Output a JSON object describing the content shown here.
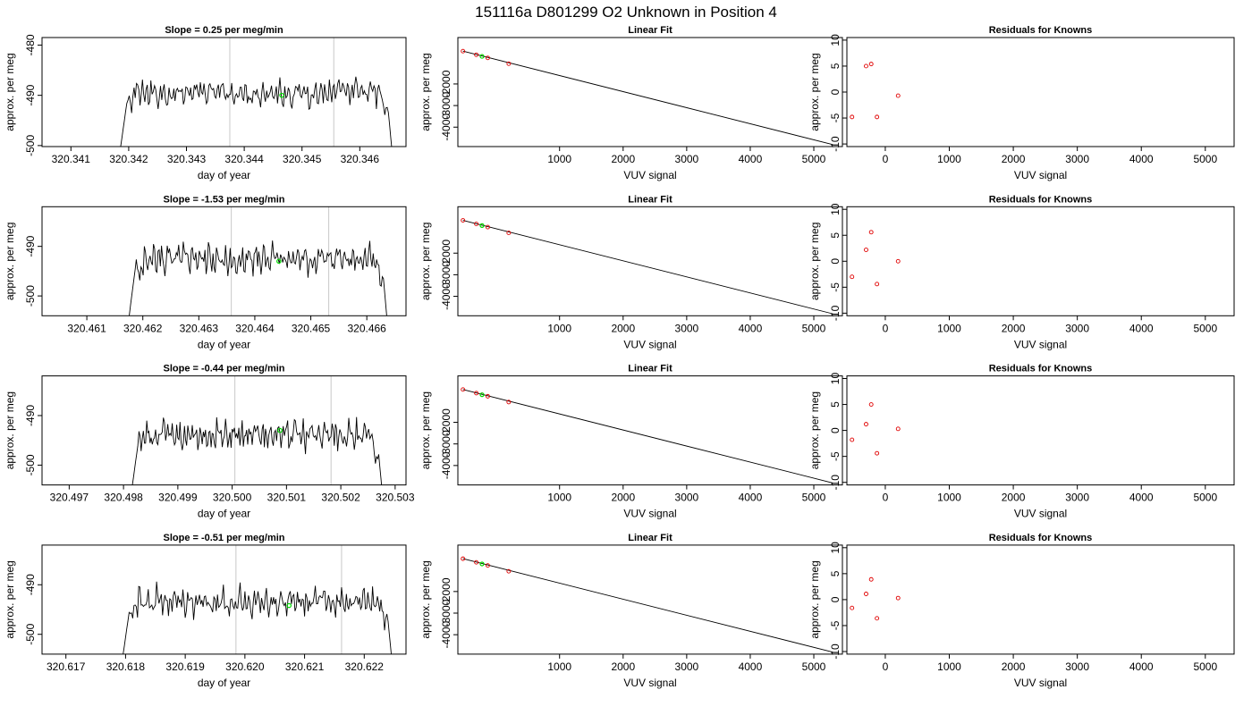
{
  "figure": {
    "title": "151116a      D801299   O2 Unknown in Position  4"
  },
  "chart_data": [
    {
      "type": "line",
      "row": 1,
      "title": "Slope =  0.25  per meg/min",
      "xlabel": "day of year",
      "ylabel": "approx. per meg",
      "xlim": [
        320.3405,
        320.3468
      ],
      "ylim": [
        -500.2,
        -478.5
      ],
      "x_ticks": [
        "320.341",
        "320.342",
        "320.343",
        "320.344",
        "320.345",
        "320.346"
      ],
      "x_tick_values": [
        320.341,
        320.342,
        320.343,
        320.344,
        320.345,
        320.346
      ],
      "y_ticks": [
        "-500",
        "-490",
        "-480"
      ],
      "y_tick_values": [
        -500,
        -490,
        -480
      ],
      "series_x_range": [
        320.3418,
        320.3466
      ],
      "baseline": -489.5,
      "noise_amplitude": 2.2,
      "vlines": [
        320.34375,
        320.34555
      ],
      "green_point": [
        320.34465,
        -490.0
      ],
      "color_line": "#000000",
      "color_vlines": "#c8c8c8",
      "color_point": "#00dd00"
    },
    {
      "type": "scatter",
      "row": 1,
      "title": "Linear Fit",
      "xlabel": "VUV signal",
      "ylabel": "approx. per meg",
      "xlim": [
        -600,
        5450
      ],
      "ylim": [
        -4900,
        150
      ],
      "x_ticks": [
        "1000",
        "2000",
        "3000",
        "4000",
        "5000"
      ],
      "x_tick_values": [
        1000,
        2000,
        3000,
        4000,
        5000
      ],
      "y_ticks": [
        "-4000",
        "-3000",
        "-2000"
      ],
      "y_tick_values": [
        -4000,
        -3000,
        -2000
      ],
      "points": [
        [
          -520,
          -480
        ],
        [
          -310,
          -648
        ],
        [
          -220,
          -722
        ],
        [
          -130,
          -793
        ],
        [
          200,
          -1062
        ]
      ],
      "green_points": [
        [
          -220,
          -722
        ]
      ],
      "fit_line": [
        [
          -520,
          -480
        ],
        [
          5300,
          -4810
        ]
      ],
      "color_points": "#e00000",
      "color_green": "#00dd00",
      "color_line": "#000000"
    },
    {
      "type": "scatter",
      "row": 1,
      "title": "Residuals for Knowns",
      "xlabel": "VUV signal",
      "ylabel": "approx. per meg",
      "xlim": [
        -600,
        5450
      ],
      "ylim": [
        -10.5,
        10.5
      ],
      "x_ticks": [
        "0",
        "1000",
        "2000",
        "3000",
        "4000",
        "5000"
      ],
      "x_tick_values": [
        0,
        1000,
        2000,
        3000,
        4000,
        5000
      ],
      "y_ticks": [
        "-10",
        "-5",
        "0",
        "5",
        "10"
      ],
      "y_tick_values": [
        -10,
        -5,
        0,
        5,
        10
      ],
      "points": [
        [
          -520,
          -4.8
        ],
        [
          -300,
          5.0
        ],
        [
          -220,
          5.4
        ],
        [
          -130,
          -4.8
        ],
        [
          200,
          -0.7
        ]
      ],
      "color_points": "#e00000"
    },
    {
      "type": "line",
      "row": 2,
      "title": "Slope =  -1.53  per meg/min",
      "xlabel": "day of year",
      "ylabel": "approx. per meg",
      "xlim": [
        320.4602,
        320.4667
      ],
      "ylim": [
        -504.0,
        -482.0
      ],
      "x_ticks": [
        "320.461",
        "320.462",
        "320.463",
        "320.464",
        "320.465",
        "320.466"
      ],
      "x_tick_values": [
        320.461,
        320.462,
        320.463,
        320.464,
        320.465,
        320.466
      ],
      "y_ticks": [
        "-500",
        "-490"
      ],
      "y_tick_values": [
        -500,
        -490
      ],
      "series_x_range": [
        320.4617,
        320.4664
      ],
      "baseline": -492.5,
      "noise_amplitude": 2.3,
      "vlines": [
        320.46358,
        320.46532
      ],
      "green_point": [
        320.46443,
        -493.0
      ],
      "color_line": "#000000",
      "color_vlines": "#c8c8c8",
      "color_point": "#00dd00"
    },
    {
      "type": "scatter",
      "row": 2,
      "title": "Linear Fit",
      "xlabel": "VUV signal",
      "ylabel": "approx. per meg",
      "xlim": [
        -600,
        5450
      ],
      "ylim": [
        -4900,
        150
      ],
      "x_ticks": [
        "1000",
        "2000",
        "3000",
        "4000",
        "5000"
      ],
      "x_tick_values": [
        1000,
        2000,
        3000,
        4000,
        5000
      ],
      "y_ticks": [
        "-4000",
        "-3000",
        "-2000"
      ],
      "y_tick_values": [
        -4000,
        -3000,
        -2000
      ],
      "points": [
        [
          -520,
          -480
        ],
        [
          -310,
          -648
        ],
        [
          -220,
          -722
        ],
        [
          -130,
          -793
        ],
        [
          200,
          -1062
        ]
      ],
      "green_points": [
        [
          -220,
          -722
        ]
      ],
      "fit_line": [
        [
          -520,
          -480
        ],
        [
          5300,
          -4810
        ]
      ],
      "color_points": "#e00000",
      "color_green": "#00dd00",
      "color_line": "#000000"
    },
    {
      "type": "scatter",
      "row": 2,
      "title": "Residuals for Knowns",
      "xlabel": "VUV signal",
      "ylabel": "approx. per meg",
      "xlim": [
        -600,
        5450
      ],
      "ylim": [
        -10.5,
        10.5
      ],
      "x_ticks": [
        "0",
        "1000",
        "2000",
        "3000",
        "4000",
        "5000"
      ],
      "x_tick_values": [
        0,
        1000,
        2000,
        3000,
        4000,
        5000
      ],
      "y_ticks": [
        "-10",
        "-5",
        "0",
        "5",
        "10"
      ],
      "y_tick_values": [
        -10,
        -5,
        0,
        5,
        10
      ],
      "points": [
        [
          -520,
          -3.0
        ],
        [
          -300,
          2.2
        ],
        [
          -220,
          5.6
        ],
        [
          -130,
          -4.4
        ],
        [
          200,
          0.0
        ]
      ],
      "color_points": "#e00000"
    },
    {
      "type": "line",
      "row": 3,
      "title": "Slope =  -0.44  per meg/min",
      "xlabel": "day of year",
      "ylabel": "approx. per meg",
      "xlim": [
        320.4965,
        320.5032
      ],
      "ylim": [
        -504.0,
        -482.0
      ],
      "x_ticks": [
        "320.497",
        "320.498",
        "320.499",
        "320.500",
        "320.501",
        "320.502",
        "320.503"
      ],
      "x_tick_values": [
        320.497,
        320.498,
        320.499,
        320.5,
        320.501,
        320.502,
        320.503
      ],
      "y_ticks": [
        "-500",
        "-490"
      ],
      "y_tick_values": [
        -500,
        -490
      ],
      "series_x_range": [
        320.4981,
        320.5028
      ],
      "baseline": -494.0,
      "noise_amplitude": 2.3,
      "vlines": [
        320.50005,
        320.50182
      ],
      "green_point": [
        320.50088,
        -493.0
      ],
      "color_line": "#000000",
      "color_vlines": "#c8c8c8",
      "color_point": "#00dd00"
    },
    {
      "type": "scatter",
      "row": 3,
      "title": "Linear Fit",
      "xlabel": "VUV signal",
      "ylabel": "approx. per meg",
      "xlim": [
        -600,
        5450
      ],
      "ylim": [
        -4900,
        150
      ],
      "x_ticks": [
        "1000",
        "2000",
        "3000",
        "4000",
        "5000"
      ],
      "x_tick_values": [
        1000,
        2000,
        3000,
        4000,
        5000
      ],
      "y_ticks": [
        "-4000",
        "-3000",
        "-2000"
      ],
      "y_tick_values": [
        -4000,
        -3000,
        -2000
      ],
      "points": [
        [
          -520,
          -480
        ],
        [
          -310,
          -648
        ],
        [
          -220,
          -722
        ],
        [
          -130,
          -793
        ],
        [
          200,
          -1062
        ]
      ],
      "green_points": [
        [
          -220,
          -722
        ]
      ],
      "fit_line": [
        [
          -520,
          -480
        ],
        [
          5300,
          -4810
        ]
      ],
      "color_points": "#e00000",
      "color_green": "#00dd00",
      "color_line": "#000000"
    },
    {
      "type": "scatter",
      "row": 3,
      "title": "Residuals for Knowns",
      "xlabel": "VUV signal",
      "ylabel": "approx. per meg",
      "xlim": [
        -600,
        5450
      ],
      "ylim": [
        -10.5,
        10.5
      ],
      "x_ticks": [
        "0",
        "1000",
        "2000",
        "3000",
        "4000",
        "5000"
      ],
      "x_tick_values": [
        0,
        1000,
        2000,
        3000,
        4000,
        5000
      ],
      "y_ticks": [
        "-10",
        "-5",
        "0",
        "5",
        "10"
      ],
      "y_tick_values": [
        -10,
        -5,
        0,
        5,
        10
      ],
      "points": [
        [
          -520,
          -1.8
        ],
        [
          -300,
          1.2
        ],
        [
          -220,
          5.0
        ],
        [
          -130,
          -4.4
        ],
        [
          200,
          0.3
        ]
      ],
      "color_points": "#e00000"
    },
    {
      "type": "line",
      "row": 4,
      "title": "Slope =  -0.51  per meg/min",
      "xlabel": "day of year",
      "ylabel": "approx. per meg",
      "xlim": [
        320.6166,
        320.6227
      ],
      "ylim": [
        -504.0,
        -482.0
      ],
      "x_ticks": [
        "320.617",
        "320.618",
        "320.619",
        "320.620",
        "320.621",
        "320.622"
      ],
      "x_tick_values": [
        320.617,
        320.618,
        320.619,
        320.62,
        320.621,
        320.622
      ],
      "y_ticks": [
        "-500",
        "-490"
      ],
      "y_tick_values": [
        -500,
        -490
      ],
      "series_x_range": [
        320.6179,
        320.6225
      ],
      "baseline": -493.5,
      "noise_amplitude": 2.3,
      "vlines": [
        320.61985,
        320.62162
      ],
      "green_point": [
        320.62074,
        -494.2
      ],
      "color_line": "#000000",
      "color_vlines": "#c8c8c8",
      "color_point": "#00dd00"
    },
    {
      "type": "scatter",
      "row": 4,
      "title": "Linear Fit",
      "xlabel": "VUV signal",
      "ylabel": "approx. per meg",
      "xlim": [
        -600,
        5450
      ],
      "ylim": [
        -4900,
        150
      ],
      "x_ticks": [
        "1000",
        "2000",
        "3000",
        "4000",
        "5000"
      ],
      "x_tick_values": [
        1000,
        2000,
        3000,
        4000,
        5000
      ],
      "y_ticks": [
        "-4000",
        "-3000",
        "-2000"
      ],
      "y_tick_values": [
        -4000,
        -3000,
        -2000
      ],
      "points": [
        [
          -520,
          -480
        ],
        [
          -310,
          -648
        ],
        [
          -220,
          -722
        ],
        [
          -130,
          -793
        ],
        [
          200,
          -1062
        ]
      ],
      "green_points": [
        [
          -220,
          -722
        ]
      ],
      "fit_line": [
        [
          -520,
          -480
        ],
        [
          5300,
          -4810
        ]
      ],
      "color_points": "#e00000",
      "color_green": "#00dd00",
      "color_line": "#000000"
    },
    {
      "type": "scatter",
      "row": 4,
      "title": "Residuals for Knowns",
      "xlabel": "VUV signal",
      "ylabel": "approx. per meg",
      "xlim": [
        -600,
        5450
      ],
      "ylim": [
        -10.5,
        10.5
      ],
      "x_ticks": [
        "0",
        "1000",
        "2000",
        "3000",
        "4000",
        "5000"
      ],
      "x_tick_values": [
        0,
        1000,
        2000,
        3000,
        4000,
        5000
      ],
      "y_ticks": [
        "-10",
        "-5",
        "0",
        "5",
        "10"
      ],
      "y_tick_values": [
        -10,
        -5,
        0,
        5,
        10
      ],
      "points": [
        [
          -520,
          -1.6
        ],
        [
          -300,
          1.1
        ],
        [
          -220,
          3.9
        ],
        [
          -130,
          -3.6
        ],
        [
          200,
          0.3
        ]
      ],
      "color_points": "#e00000"
    }
  ]
}
